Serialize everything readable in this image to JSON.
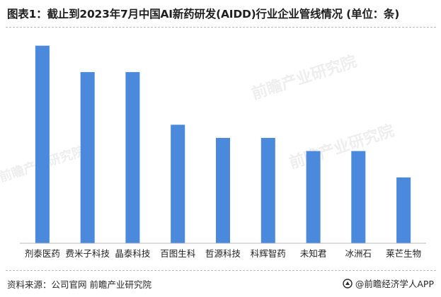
{
  "title": "图表1：截止到2023年7月中国AI新药研发(AIDD)行业企业管线情况 (单位：条)",
  "source": "资料来源：公司官网 前瞻产业研究院",
  "brand": "@前瞻经济学人APP",
  "watermark": "前瞻产业研究院",
  "colors": {
    "bar": "#4A89DC",
    "axis": "#b9b9b9",
    "text": "#222222"
  },
  "chart_data": {
    "type": "bar",
    "title": "图表1：截止到2023年7月中国AI新药研发(AIDD)行业企业管线情况 (单位：条)",
    "xlabel": "",
    "ylabel": "",
    "categories": [
      "剂泰医药",
      "费米子科技",
      "晶泰科技",
      "百图生科",
      "哲源科技",
      "科辉智药",
      "未知君",
      "冰洲石",
      "莱芒生物"
    ],
    "values": [
      15,
      13,
      13,
      9,
      8,
      8,
      7,
      7,
      5
    ],
    "ylim": [
      0,
      16
    ],
    "grid": false,
    "legend": "none"
  }
}
